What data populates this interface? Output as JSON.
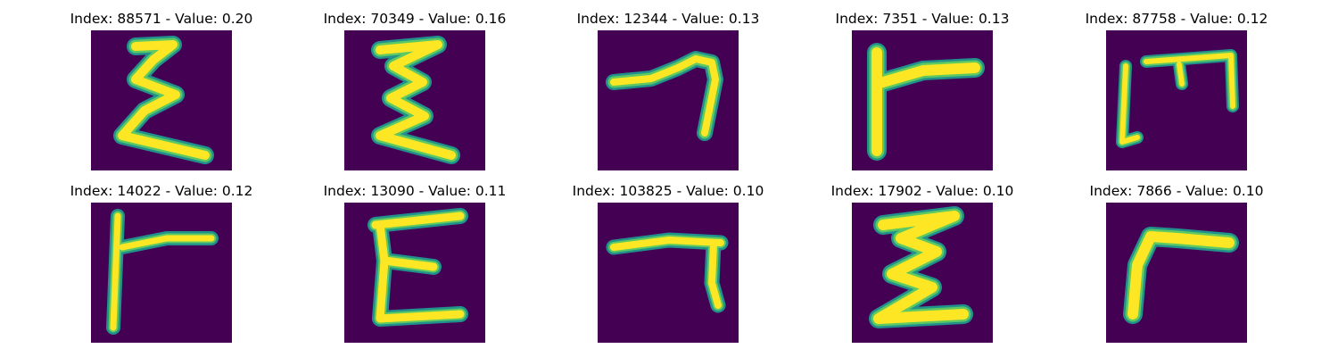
{
  "colors": {
    "background": "#440154",
    "stroke_edge": "#21918c",
    "stroke_mid": "#5ec962",
    "stroke_core": "#fde725"
  },
  "panels": [
    {
      "title": "Index: 88571 - Value: 0.20"
    },
    {
      "title": "Index: 70349 - Value: 0.16"
    },
    {
      "title": "Index: 12344 - Value: 0.13"
    },
    {
      "title": "Index: 7351 - Value: 0.13"
    },
    {
      "title": "Index: 87758 - Value: 0.12"
    },
    {
      "title": "Index: 14022 - Value: 0.12"
    },
    {
      "title": "Index: 13090 - Value: 0.11"
    },
    {
      "title": "Index: 103825 - Value: 0.10"
    },
    {
      "title": "Index: 17902 - Value: 0.10"
    },
    {
      "title": "Index: 7866 - Value: 0.10"
    }
  ]
}
